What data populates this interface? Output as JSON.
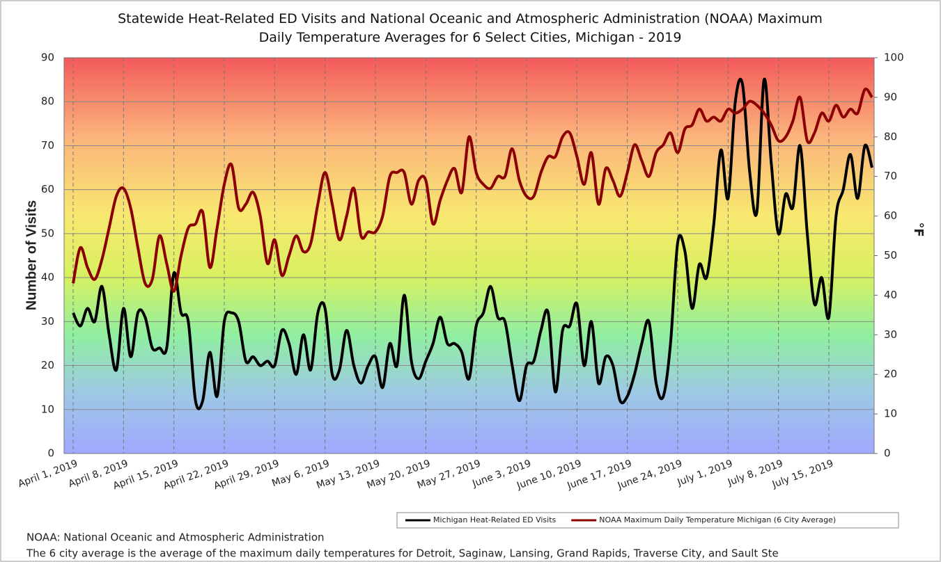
{
  "chart_data": {
    "type": "line",
    "title": "Statewide Heat-Related ED Visits and National Oceanic and Atmospheric Administration (NOAA) Maximum Daily Temperature Averages for 6 Select Cities, Michigan - 2019",
    "y_label": "Number of Visits",
    "y2_label": "°F",
    "categories": [
      "April 1, 2019",
      null,
      null,
      null,
      null,
      null,
      null,
      "April 8, 2019",
      null,
      null,
      null,
      null,
      null,
      null,
      "April 15, 2019",
      null,
      null,
      null,
      null,
      null,
      null,
      "April 22, 2019",
      null,
      null,
      null,
      null,
      null,
      null,
      "April 29, 2019",
      null,
      null,
      null,
      null,
      null,
      null,
      "May 6, 2019",
      null,
      null,
      null,
      null,
      null,
      null,
      "May 13, 2019",
      null,
      null,
      null,
      null,
      null,
      null,
      "May 20, 2019",
      null,
      null,
      null,
      null,
      null,
      null,
      "May 27, 2019",
      null,
      null,
      null,
      null,
      null,
      null,
      "June 3, 2019",
      null,
      null,
      null,
      null,
      null,
      null,
      "June 10, 2019",
      null,
      null,
      null,
      null,
      null,
      null,
      "June 17, 2019",
      null,
      null,
      null,
      null,
      null,
      null,
      "June 24, 2019",
      null,
      null,
      null,
      null,
      null,
      null,
      "July 1, 2019",
      null,
      null,
      null,
      null,
      null,
      null,
      "July 8, 2019",
      null,
      null,
      null,
      null,
      null,
      null,
      "July 15, 2019",
      null,
      null,
      null,
      null,
      null,
      null
    ],
    "series": [
      {
        "name": "Michigan Heat-Related ED Visits",
        "color": "#000000",
        "axis": "y",
        "values": [
          32,
          29,
          33,
          30,
          38,
          27,
          19,
          33,
          22,
          32,
          31,
          24,
          24,
          24,
          41,
          32,
          30,
          12,
          12,
          23,
          13,
          30,
          32,
          30,
          21,
          22,
          20,
          21,
          20,
          28,
          25,
          18,
          27,
          19,
          32,
          33,
          18,
          19,
          28,
          20,
          16,
          20,
          22,
          15,
          25,
          20,
          36,
          21,
          17,
          21,
          25,
          31,
          25,
          25,
          23,
          17,
          29,
          32,
          38,
          31,
          30,
          20,
          12,
          20,
          21,
          28,
          32,
          14,
          28,
          29,
          34,
          20,
          30,
          16,
          22,
          20,
          12,
          13,
          18,
          25,
          30,
          16,
          13,
          25,
          48,
          46,
          33,
          43,
          40,
          52,
          69,
          58,
          80,
          84,
          64,
          55,
          85,
          66,
          50,
          59,
          56,
          70,
          50,
          34,
          40,
          31,
          54,
          60,
          68,
          58,
          70,
          65
        ]
      },
      {
        "name": "NOAA Maximum Daily Temperature Michigan (6 City Average)",
        "color": "#8b0000",
        "axis": "y2",
        "values": [
          43,
          52,
          47,
          44,
          49,
          57,
          65,
          67,
          62,
          52,
          43,
          44,
          55,
          48,
          41,
          50,
          57,
          58,
          61,
          47,
          57,
          68,
          73,
          62,
          63,
          66,
          60,
          48,
          54,
          45,
          50,
          55,
          51,
          53,
          63,
          71,
          63,
          54,
          60,
          67,
          55,
          56,
          56,
          60,
          70,
          71,
          71,
          63,
          69,
          69,
          58,
          64,
          69,
          72,
          66,
          80,
          71,
          68,
          67,
          70,
          70,
          77,
          69,
          65,
          65,
          71,
          75,
          75,
          80,
          81,
          75,
          68,
          76,
          63,
          72,
          69,
          65,
          71,
          78,
          74,
          70,
          76,
          78,
          81,
          76,
          82,
          83,
          87,
          84,
          85,
          84,
          87,
          86,
          87,
          89,
          88,
          86,
          83,
          79,
          80,
          84,
          90,
          79,
          81,
          86,
          84,
          88,
          85,
          87,
          86,
          92,
          90
        ]
      }
    ],
    "ylim": [
      0,
      90
    ],
    "yticks": [
      0,
      10,
      20,
      30,
      40,
      50,
      60,
      70,
      80,
      90
    ],
    "y2lim": [
      0,
      100
    ],
    "y2ticks": [
      0,
      10,
      20,
      30,
      40,
      50,
      60,
      70,
      80,
      90,
      100
    ],
    "grid": true,
    "legend_position": "bottom-right",
    "notes": [
      "NOAA: National Oceanic and Atmospheric Administration",
      "The 6 city average is the average of the maximum daily temperatures for Detroit, Saginaw, Lansing, Grand Rapids, Traverse City, and Sault Ste"
    ]
  }
}
